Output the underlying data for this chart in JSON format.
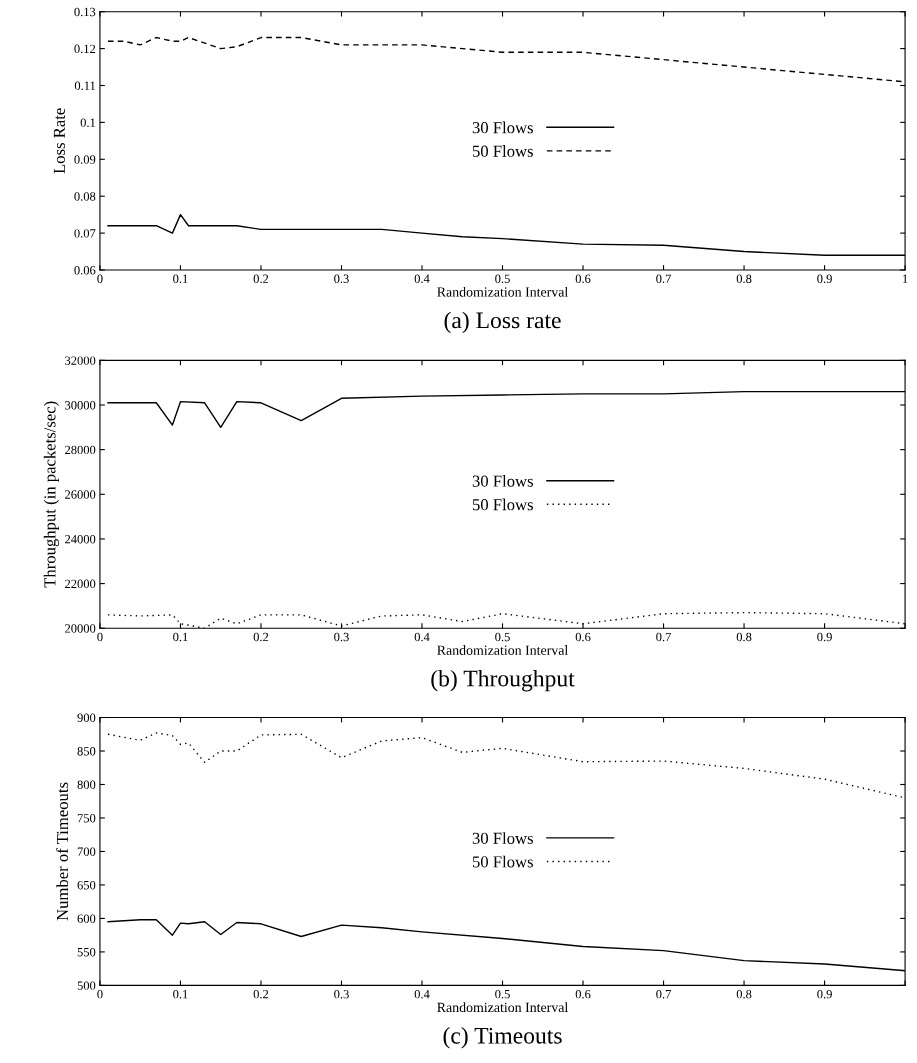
{
  "chart_data": [
    {
      "type": "line",
      "xlabel": "Randomization Interval",
      "ylabel": "Loss Rate",
      "annotations": [
        "(a) Loss rate"
      ],
      "xlim": [
        0,
        1
      ],
      "xticks": [
        0,
        0.1,
        0.2,
        0.3,
        0.4,
        0.5,
        0.6,
        0.7,
        0.8,
        0.9,
        1
      ],
      "ylim": [
        0.06,
        0.13
      ],
      "yticks": [
        0.06,
        0.07,
        0.08,
        0.09,
        0.1,
        0.11,
        0.12,
        0.13
      ],
      "legend": "center",
      "grid": false,
      "series": [
        {
          "name": "30 Flows",
          "color": "#000000",
          "line_style": "solid",
          "x": [
            0.01,
            0.07,
            0.09,
            0.1,
            0.11,
            0.17,
            0.2,
            0.35,
            0.4,
            0.45,
            0.5,
            0.6,
            0.7,
            0.8,
            0.9,
            1.0
          ],
          "values": [
            0.072,
            0.072,
            0.07,
            0.075,
            0.072,
            0.072,
            0.071,
            0.071,
            0.07,
            0.069,
            0.0685,
            0.067,
            0.0667,
            0.065,
            0.064,
            0.064
          ]
        },
        {
          "name": "50 Flows",
          "color": "#000000",
          "line_style": "dashed",
          "x": [
            0.01,
            0.03,
            0.05,
            0.07,
            0.09,
            0.1,
            0.11,
            0.15,
            0.17,
            0.2,
            0.25,
            0.3,
            0.4,
            0.5,
            0.6,
            0.7,
            0.8,
            0.9,
            1.0
          ],
          "values": [
            0.122,
            0.122,
            0.121,
            0.123,
            0.122,
            0.122,
            0.123,
            0.12,
            0.1205,
            0.123,
            0.123,
            0.121,
            0.121,
            0.119,
            0.119,
            0.117,
            0.115,
            0.113,
            0.111
          ]
        }
      ]
    },
    {
      "type": "line",
      "xlabel": "Randomization Interval",
      "ylabel": "Throughput (in packets/sec)",
      "annotations": [
        "(b) Throughput"
      ],
      "xlim": [
        0,
        1
      ],
      "xticks": [
        0,
        0.1,
        0.2,
        0.3,
        0.4,
        0.5,
        0.6,
        0.7,
        0.8,
        0.9,
        {
          "value": 1,
          "label": null
        }
      ],
      "ylim": [
        20000,
        32000
      ],
      "yticks": [
        20000,
        22000,
        24000,
        26000,
        28000,
        30000,
        32000
      ],
      "legend": "center",
      "grid": false,
      "series": [
        {
          "name": "30 Flows",
          "color": "#000000",
          "line_style": "solid",
          "x": [
            0.01,
            0.07,
            0.09,
            0.1,
            0.13,
            0.15,
            0.17,
            0.2,
            0.25,
            0.3,
            0.4,
            0.5,
            0.6,
            0.7,
            0.8,
            0.9,
            1.0
          ],
          "values": [
            30100,
            30100,
            29100,
            30150,
            30100,
            29000,
            30150,
            30100,
            29300,
            30300,
            30400,
            30450,
            30500,
            30500,
            30600,
            30600,
            30600
          ]
        },
        {
          "name": "50 Flows",
          "color": "#000000",
          "line_style": "dotted",
          "x": [
            0.01,
            0.05,
            0.09,
            0.1,
            0.13,
            0.15,
            0.17,
            0.2,
            0.25,
            0.3,
            0.35,
            0.4,
            0.45,
            0.5,
            0.6,
            0.7,
            0.8,
            0.9,
            1.0
          ],
          "values": [
            20600,
            20550,
            20600,
            20200,
            20000,
            20450,
            20200,
            20600,
            20600,
            20100,
            20550,
            20600,
            20300,
            20650,
            20200,
            20650,
            20700,
            20650,
            20200
          ]
        }
      ]
    },
    {
      "type": "line",
      "xlabel": "Randomization Interval",
      "ylabel": "Number of Timeouts",
      "annotations": [
        "(c) Timeouts"
      ],
      "xlim": [
        0,
        1
      ],
      "xticks": [
        0,
        0.1,
        0.2,
        0.3,
        0.4,
        0.5,
        0.6,
        0.7,
        0.8,
        0.9,
        {
          "value": 1,
          "label": null
        }
      ],
      "ylim": [
        500,
        900
      ],
      "yticks": [
        500,
        550,
        600,
        650,
        700,
        750,
        800,
        850,
        900
      ],
      "legend": "center",
      "grid": false,
      "series": [
        {
          "name": "30 Flows",
          "color": "#000000",
          "line_style": "solid",
          "x": [
            0.01,
            0.05,
            0.07,
            0.09,
            0.1,
            0.11,
            0.13,
            0.15,
            0.17,
            0.2,
            0.25,
            0.3,
            0.35,
            0.4,
            0.5,
            0.6,
            0.7,
            0.8,
            0.9,
            1.0
          ],
          "values": [
            595,
            598,
            598,
            575,
            593,
            592,
            595,
            576,
            594,
            592,
            573,
            590,
            586,
            580,
            570,
            558,
            552,
            537,
            532,
            522
          ]
        },
        {
          "name": "50 Flows",
          "color": "#000000",
          "line_style": "dotted",
          "x": [
            0.01,
            0.05,
            0.07,
            0.09,
            0.1,
            0.11,
            0.13,
            0.15,
            0.17,
            0.2,
            0.25,
            0.3,
            0.35,
            0.4,
            0.45,
            0.5,
            0.6,
            0.7,
            0.8,
            0.9,
            1.0
          ],
          "values": [
            875,
            866,
            877,
            873,
            860,
            862,
            833,
            850,
            850,
            874,
            875,
            840,
            865,
            870,
            848,
            854,
            834,
            835,
            824,
            808,
            780
          ]
        }
      ]
    }
  ]
}
